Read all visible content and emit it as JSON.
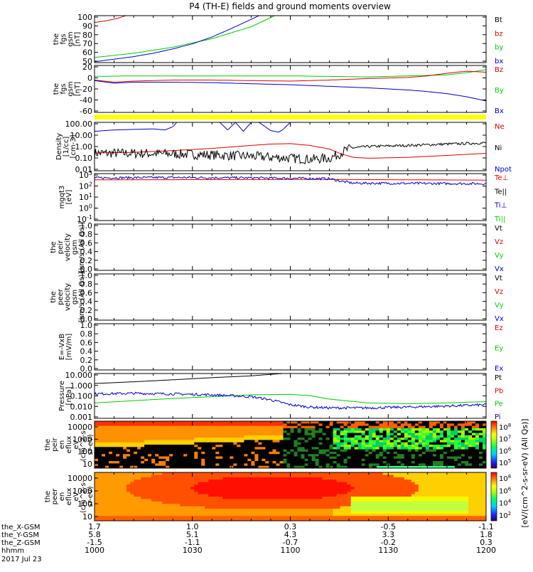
{
  "title": "P4 (TH-E) fields and ground moments overview",
  "date_label": "2017 Jul 23",
  "colors": {
    "black": "#000000",
    "red": "#dd0000",
    "green": "#00cc00",
    "blue": "#0000cc",
    "yellow": "#ffff00"
  },
  "time_axis": {
    "rows": [
      {
        "label": "the_X-GSM",
        "values": [
          "1.7",
          "1.0",
          "0.3",
          "-0.5",
          "-1.1"
        ]
      },
      {
        "label": "the_Y-GSM",
        "values": [
          "5.8",
          "5.1",
          "4.3",
          "3.3",
          "1.8"
        ]
      },
      {
        "label": "the_Z-GSM",
        "values": [
          "-1.5",
          "-1.1",
          "-0.7",
          "-0.2",
          "0.3"
        ]
      },
      {
        "label": "hhmm",
        "values": [
          "1000",
          "1030",
          "1100",
          "1130",
          "1200"
        ]
      }
    ]
  },
  "chart_data": [
    {
      "id": "fgs_gsm_1",
      "type": "line",
      "ylabel": [
        "the",
        "fgs",
        "gsm",
        "[nT]"
      ],
      "ylim": [
        45,
        100
      ],
      "yticks": [
        "100",
        "90",
        "80",
        "70",
        "60",
        "50"
      ],
      "legend": [
        {
          "name": "Bt",
          "color": "#000000"
        },
        {
          "name": "bz",
          "color": "#dd0000"
        },
        {
          "name": "by",
          "color": "#00cc00"
        },
        {
          "name": "bx",
          "color": "#0000cc"
        }
      ],
      "series": [
        {
          "name": "bz",
          "color": "#dd0000",
          "x": [
            0,
            0.03,
            0.06,
            0.08
          ],
          "y": [
            92,
            94,
            97,
            100
          ]
        },
        {
          "name": "by",
          "color": "#00cc00",
          "x": [
            0,
            0.1,
            0.2,
            0.3,
            0.4,
            0.46
          ],
          "y": [
            51,
            56,
            63,
            73,
            87,
            100
          ]
        },
        {
          "name": "bx",
          "color": "#0000cc",
          "x": [
            0,
            0.05,
            0.1,
            0.15,
            0.2,
            0.25,
            0.3,
            0.35,
            0.42
          ],
          "y": [
            46,
            49,
            52,
            56,
            61,
            67,
            75,
            85,
            100
          ]
        }
      ]
    },
    {
      "id": "fgs_gsm_2",
      "type": "line",
      "ylabel": [
        "the",
        "fgs",
        "gsm",
        "[nT]"
      ],
      "ylim": [
        -70,
        20
      ],
      "yticks": [
        "20",
        "0",
        "-20",
        "-40",
        "-60"
      ],
      "legend": [
        {
          "name": "Bz",
          "color": "#dd0000"
        },
        {
          "name": "By",
          "color": "#00cc00"
        },
        {
          "name": "Bx",
          "color": "#0000cc"
        }
      ],
      "series": [
        {
          "name": "By",
          "color": "#00cc00",
          "x": [
            0,
            0.1,
            0.2,
            0.3,
            0.4,
            0.5,
            0.6,
            0.7,
            0.8,
            0.9,
            0.95,
            1
          ],
          "y": [
            -1,
            0,
            0,
            0,
            0,
            0,
            -1,
            -2,
            0,
            2,
            6,
            12
          ]
        },
        {
          "name": "Bz",
          "color": "#dd0000",
          "x": [
            0,
            0.05,
            0.1,
            0.2,
            0.3,
            0.4,
            0.5,
            0.6,
            0.7,
            0.8,
            0.85,
            0.9,
            0.95,
            1
          ],
          "y": [
            -8,
            -12,
            -10,
            -8,
            -8,
            -9,
            -10,
            -8,
            -5,
            -3,
            0,
            5,
            9,
            7
          ]
        },
        {
          "name": "Bx",
          "color": "#0000cc",
          "x": [
            0,
            0.05,
            0.1,
            0.2,
            0.3,
            0.4,
            0.5,
            0.6,
            0.7,
            0.8,
            0.85,
            0.9,
            0.95,
            1
          ],
          "y": [
            -9,
            -14,
            -12,
            -12,
            -13,
            -15,
            -17,
            -20,
            -23,
            -27,
            -30,
            -34,
            -40,
            -48
          ]
        }
      ]
    },
    {
      "id": "density",
      "type": "line",
      "yscale": "log",
      "ylabel": [
        "Density",
        "[1/cc]",
        "[cm-3]"
      ],
      "ylim": [
        0.007,
        200
      ],
      "yticks": [
        "100.00",
        "10.00",
        "1.00",
        "0.10",
        "0.01"
      ],
      "legend": [
        {
          "name": "Ne",
          "color": "#dd0000"
        },
        {
          "name": "Ni",
          "color": "#000000"
        },
        {
          "name": "Npot",
          "color": "#0000cc"
        }
      ],
      "series": [
        {
          "name": "Ne",
          "color": "#dd0000",
          "x": [
            0,
            0.1,
            0.2,
            0.3,
            0.4,
            0.45,
            0.5,
            0.55,
            0.6,
            0.63,
            0.66,
            0.7,
            0.8,
            0.9,
            1
          ],
          "y": [
            0.3,
            0.35,
            0.5,
            0.8,
            1.5,
            2.0,
            2.2,
            1.5,
            0.7,
            0.25,
            0.12,
            0.1,
            0.12,
            0.18,
            0.28
          ]
        },
        {
          "name": "Ni",
          "color": "#000000",
          "noisy": true,
          "x": [
            0,
            0.1,
            0.2,
            0.3,
            0.4,
            0.5,
            0.55,
            0.6,
            0.62,
            0.64,
            0.66,
            0.7,
            0.8,
            0.9,
            1
          ],
          "y": [
            0.3,
            0.28,
            0.25,
            0.2,
            0.15,
            0.1,
            0.08,
            0.1,
            0.2,
            0.5,
            0.9,
            1.2,
            1.5,
            2.0,
            2.6
          ]
        },
        {
          "name": "Npot",
          "color": "#0000cc",
          "x": [
            0,
            0.05,
            0.1,
            0.15,
            0.18,
            0.2,
            0.21
          ],
          "y": [
            30,
            40,
            45,
            50,
            40,
            80,
            200
          ]
        },
        {
          "name": "Npot",
          "color": "#0000cc",
          "x": [
            0.32,
            0.34,
            0.36,
            0.38,
            0.4,
            0.42,
            0.45,
            0.47,
            0.48,
            0.5
          ],
          "y": [
            200,
            40,
            200,
            30,
            200,
            200,
            35,
            25,
            40,
            200
          ]
        }
      ]
    },
    {
      "id": "temperature",
      "type": "line",
      "yscale": "log",
      "ylabel": [
        "mgqt3",
        "[eV]"
      ],
      "ylim": [
        0.05,
        3000
      ],
      "yticks": [
        "10^3",
        "10^2",
        "10^1",
        "10^0",
        "10^-1"
      ],
      "legend": [
        {
          "name": "Te⊥",
          "color": "#dd0000"
        },
        {
          "name": "Te||",
          "color": "#000000"
        },
        {
          "name": "Ti⊥",
          "color": "#0000cc"
        },
        {
          "name": "Ti||",
          "color": "#00cc00"
        }
      ],
      "series": [
        {
          "name": "Te⊥",
          "color": "#dd0000",
          "x": [
            0,
            0.2,
            0.4,
            0.6,
            0.8,
            1
          ],
          "y": [
            700,
            720,
            740,
            760,
            700,
            650
          ]
        },
        {
          "name": "Ti⊥",
          "color": "#0000cc",
          "noisy": true,
          "x": [
            0,
            0.2,
            0.4,
            0.5,
            0.6,
            0.63,
            0.66,
            0.8,
            1
          ],
          "y": [
            1100,
            1200,
            1100,
            1000,
            900,
            500,
            320,
            300,
            280
          ]
        }
      ]
    },
    {
      "id": "peir_velocity",
      "type": "line",
      "ylabel": [
        "the",
        "peir",
        "velocity",
        "gsm",
        "[km/s (All Qs)]"
      ],
      "ylim": [
        0,
        1
      ],
      "yticks": [
        "1.0",
        "0.8",
        "0.6",
        "0.4",
        "0.2",
        "0.0"
      ],
      "legend": [
        {
          "name": "Vt",
          "color": "#000000"
        },
        {
          "name": "Vz",
          "color": "#dd0000"
        },
        {
          "name": "Vy",
          "color": "#00cc00"
        },
        {
          "name": "Vx",
          "color": "#0000cc"
        }
      ],
      "series": []
    },
    {
      "id": "peer_velocity",
      "type": "line",
      "ylabel": [
        "the",
        "peer",
        "velocity",
        "gsm",
        "[km/s (All Qs)]"
      ],
      "ylim": [
        0,
        1
      ],
      "yticks": [
        "1.0",
        "0.8",
        "0.6",
        "0.4",
        "0.2",
        "0.0"
      ],
      "legend": [
        {
          "name": "Vt",
          "color": "#000000"
        },
        {
          "name": "Vz",
          "color": "#dd0000"
        },
        {
          "name": "Vy",
          "color": "#00cc00"
        },
        {
          "name": "Vx",
          "color": "#0000cc"
        }
      ],
      "series": []
    },
    {
      "id": "efield",
      "type": "line",
      "ylabel": [
        "E=-VxB",
        "[mV/m]"
      ],
      "ylim": [
        0,
        1
      ],
      "yticks": [
        "1.0",
        "0.8",
        "0.6",
        "0.4",
        "0.2",
        "0.0"
      ],
      "legend": [
        {
          "name": "Ez",
          "color": "#dd0000"
        },
        {
          "name": "Ey",
          "color": "#00cc00"
        },
        {
          "name": "Ex",
          "color": "#0000cc"
        }
      ],
      "series": []
    },
    {
      "id": "pressure",
      "type": "line",
      "yscale": "log",
      "ylabel": [
        "Pressure",
        "[nPa]"
      ],
      "ylim": [
        0.001,
        20
      ],
      "yticks": [
        "10.000",
        "1.000",
        "0.100",
        "0.010",
        "0.001"
      ],
      "legend": [
        {
          "name": "Pt",
          "color": "#000000"
        },
        {
          "name": "Pb",
          "color": "#dd0000"
        },
        {
          "name": "Pe",
          "color": "#00cc00"
        },
        {
          "name": "Pi",
          "color": "#0000cc"
        }
      ],
      "series": [
        {
          "name": "Pt",
          "color": "#000000",
          "x": [
            0,
            0.1,
            0.2,
            0.3,
            0.4,
            0.48
          ],
          "y": [
            2.2,
            3.2,
            5.0,
            8.0,
            12.0,
            20.0
          ]
        },
        {
          "name": "Pe",
          "color": "#00cc00",
          "x": [
            0,
            0.1,
            0.2,
            0.3,
            0.4,
            0.5,
            0.55,
            0.6,
            0.7,
            0.8,
            0.9,
            1
          ],
          "y": [
            0.03,
            0.05,
            0.08,
            0.12,
            0.18,
            0.2,
            0.15,
            0.07,
            0.03,
            0.025,
            0.03,
            0.04
          ]
        },
        {
          "name": "Pi",
          "color": "#0000cc",
          "noisy": true,
          "x": [
            0,
            0.1,
            0.2,
            0.3,
            0.4,
            0.45,
            0.5,
            0.55,
            0.6,
            0.7,
            0.8,
            0.9,
            1
          ],
          "y": [
            0.22,
            0.25,
            0.22,
            0.18,
            0.12,
            0.06,
            0.02,
            0.012,
            0.01,
            0.01,
            0.012,
            0.015,
            0.02
          ]
        }
      ]
    },
    {
      "id": "peir_spec",
      "type": "heatmap",
      "ylabel": [
        "the",
        "peir",
        "en",
        "eflux",
        "eV",
        "(cm^2-s-",
        "sr-eV)"
      ],
      "yticks": [
        "10000",
        "1000",
        "100",
        "10"
      ],
      "colorbar_label": "[eV/(cm^2-s-sr-eV) (All Qs)]",
      "colorbar_ticks": [
        "10^8",
        "10^7",
        "10^6",
        "10^5"
      ]
    },
    {
      "id": "peer_spec",
      "type": "heatmap",
      "ylabel": [
        "the",
        "peer",
        "en",
        "eflux",
        "eV",
        "(cm^2-s-",
        "sr-eV)"
      ],
      "yticks": [
        "10000",
        "1000",
        "100",
        "10"
      ],
      "colorbar_label": "[eV/(cm^2-s-sr-eV) (All Qs)]",
      "colorbar_ticks": [
        "10^8",
        "10^6",
        "10^4",
        "10^2"
      ]
    }
  ]
}
